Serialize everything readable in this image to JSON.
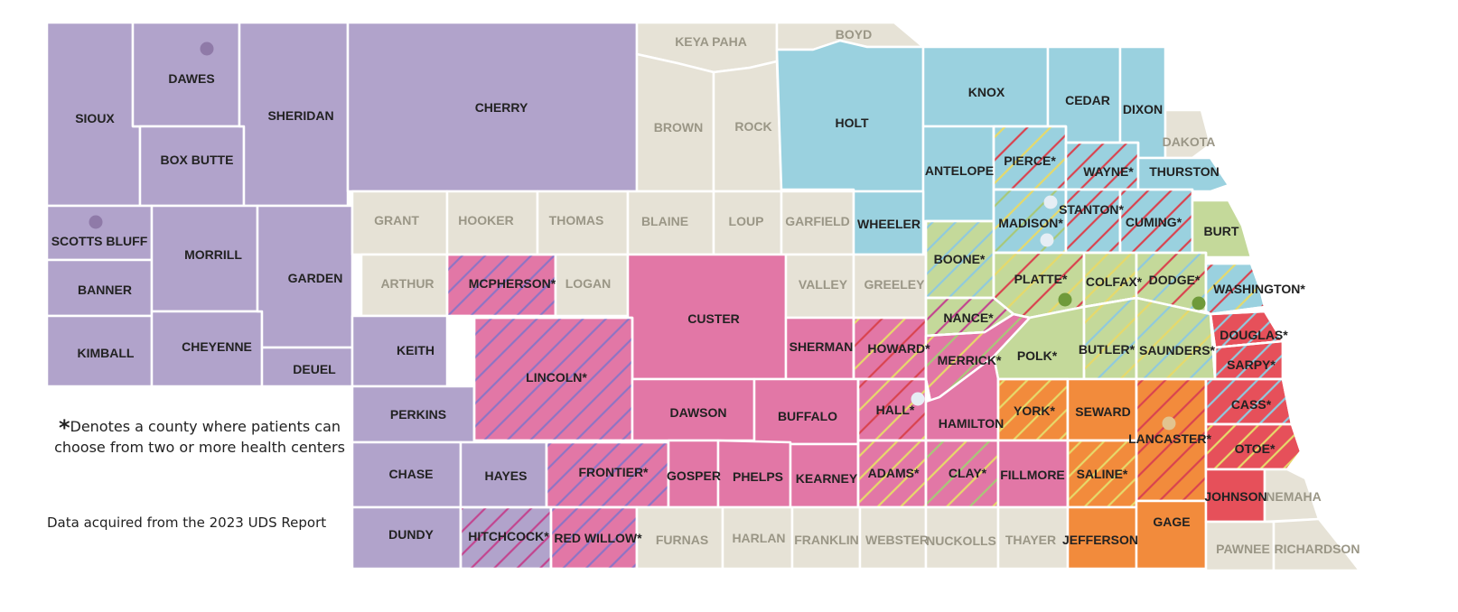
{
  "notes": {
    "asterisk_symbol": "*",
    "asterisk_text": "Denotes a county where patients can choose from two or more health centers",
    "source": "Data acquired from the 2023 UDS Report"
  },
  "colors": {
    "purple": "#b1a3cb",
    "beige": "#e6e2d6",
    "blue": "#9ad1df",
    "green": "#c4d99a",
    "pink": "#e277a6",
    "orange": "#f28b3c",
    "red": "#e6505a",
    "label_dark": "#222222",
    "label_muted": "#9a9686",
    "stripe_magenta": "#c2458f",
    "stripe_purple": "#8e74c4",
    "stripe_red": "#d9434f",
    "stripe_blue": "#8fc9dd",
    "stripe_green": "#a8c878",
    "stripe_yellow": "#e6d96a",
    "dot_purple": "#8f7aa8",
    "dot_white": "#e6eef5",
    "dot_green": "#6f9a3a",
    "dot_tan": "#e2c48f"
  },
  "counties": [
    {
      "name": "SIOUX",
      "fill": "purple"
    },
    {
      "name": "DAWES",
      "fill": "purple"
    },
    {
      "name": "BOX BUTTE",
      "fill": "purple"
    },
    {
      "name": "SHERIDAN",
      "fill": "purple"
    },
    {
      "name": "CHERRY",
      "fill": "purple"
    },
    {
      "name": "KEYA PAHA",
      "fill": "beige"
    },
    {
      "name": "BOYD",
      "fill": "beige"
    },
    {
      "name": "BROWN",
      "fill": "beige"
    },
    {
      "name": "ROCK",
      "fill": "beige"
    },
    {
      "name": "HOLT",
      "fill": "blue"
    },
    {
      "name": "KNOX",
      "fill": "blue"
    },
    {
      "name": "CEDAR",
      "fill": "blue"
    },
    {
      "name": "DIXON",
      "fill": "blue"
    },
    {
      "name": "DAKOTA",
      "fill": "beige"
    },
    {
      "name": "ANTELOPE",
      "fill": "blue"
    },
    {
      "name": "PIERCE*",
      "fill": "blue",
      "pattern": "stripe-red-yellow"
    },
    {
      "name": "WAYNE*",
      "fill": "blue",
      "pattern": "stripe-red"
    },
    {
      "name": "THURSTON",
      "fill": "blue"
    },
    {
      "name": "SCOTTS BLUFF",
      "fill": "purple"
    },
    {
      "name": "BANNER",
      "fill": "purple"
    },
    {
      "name": "KIMBALL",
      "fill": "purple"
    },
    {
      "name": "MORRILL",
      "fill": "purple"
    },
    {
      "name": "CHEYENNE",
      "fill": "purple"
    },
    {
      "name": "GARDEN",
      "fill": "purple"
    },
    {
      "name": "DEUEL",
      "fill": "purple"
    },
    {
      "name": "GRANT",
      "fill": "beige"
    },
    {
      "name": "HOOKER",
      "fill": "beige"
    },
    {
      "name": "THOMAS",
      "fill": "beige"
    },
    {
      "name": "BLAINE",
      "fill": "beige"
    },
    {
      "name": "LOUP",
      "fill": "beige"
    },
    {
      "name": "GARFIELD",
      "fill": "beige"
    },
    {
      "name": "WHEELER",
      "fill": "blue"
    },
    {
      "name": "MADISON*",
      "fill": "blue",
      "pattern": "stripe-green-yellow"
    },
    {
      "name": "STANTON*",
      "fill": "blue",
      "pattern": "stripe-red"
    },
    {
      "name": "CUMING*",
      "fill": "blue",
      "pattern": "stripe-red"
    },
    {
      "name": "BURT",
      "fill": "green"
    },
    {
      "name": "ARTHUR",
      "fill": "beige"
    },
    {
      "name": "MCPHERSON*",
      "fill": "pink",
      "pattern": "stripe-purple"
    },
    {
      "name": "LOGAN",
      "fill": "beige"
    },
    {
      "name": "CUSTER",
      "fill": "pink"
    },
    {
      "name": "VALLEY",
      "fill": "beige"
    },
    {
      "name": "GREELEY",
      "fill": "beige"
    },
    {
      "name": "BOONE*",
      "fill": "green",
      "pattern": "stripe-blue"
    },
    {
      "name": "PLATTE*",
      "fill": "green",
      "pattern": "stripe-red-yellow"
    },
    {
      "name": "COLFAX*",
      "fill": "green",
      "pattern": "stripe-yellow"
    },
    {
      "name": "DODGE*",
      "fill": "green",
      "pattern": "stripe-red-blue"
    },
    {
      "name": "WASHINGTON*",
      "fill": "blue",
      "pattern": "stripe-red-yellow"
    },
    {
      "name": "KEITH",
      "fill": "purple"
    },
    {
      "name": "PERKINS",
      "fill": "purple"
    },
    {
      "name": "LINCOLN*",
      "fill": "pink",
      "pattern": "stripe-purple"
    },
    {
      "name": "NANCE*",
      "fill": "green",
      "pattern": "stripe-magenta"
    },
    {
      "name": "SHERMAN",
      "fill": "pink"
    },
    {
      "name": "HOWARD*",
      "fill": "pink",
      "pattern": "stripe-red-yellow"
    },
    {
      "name": "MERRICK*",
      "fill": "pink",
      "pattern": "stripe-green-yellow"
    },
    {
      "name": "POLK*",
      "fill": "green"
    },
    {
      "name": "BUTLER*",
      "fill": "green",
      "pattern": "stripe-blue-yellow"
    },
    {
      "name": "SAUNDERS*",
      "fill": "green",
      "pattern": "stripe-blue-yellow"
    },
    {
      "name": "DOUGLAS*",
      "fill": "red",
      "pattern": "stripe-blue"
    },
    {
      "name": "SARPY*",
      "fill": "red",
      "pattern": "stripe-blue"
    },
    {
      "name": "DAWSON",
      "fill": "pink"
    },
    {
      "name": "BUFFALO",
      "fill": "pink"
    },
    {
      "name": "HALL*",
      "fill": "pink",
      "pattern": "stripe-red-yellow"
    },
    {
      "name": "HAMILTON",
      "fill": "pink"
    },
    {
      "name": "YORK*",
      "fill": "orange",
      "pattern": "stripe-yellow"
    },
    {
      "name": "SEWARD",
      "fill": "orange"
    },
    {
      "name": "LANCASTER*",
      "fill": "orange",
      "pattern": "stripe-red"
    },
    {
      "name": "CASS*",
      "fill": "red",
      "pattern": "stripe-blue"
    },
    {
      "name": "CHASE",
      "fill": "purple"
    },
    {
      "name": "HAYES",
      "fill": "purple"
    },
    {
      "name": "FRONTIER*",
      "fill": "pink",
      "pattern": "stripe-purple"
    },
    {
      "name": "GOSPER",
      "fill": "pink"
    },
    {
      "name": "PHELPS",
      "fill": "pink"
    },
    {
      "name": "KEARNEY",
      "fill": "pink"
    },
    {
      "name": "ADAMS*",
      "fill": "pink",
      "pattern": "stripe-yellow"
    },
    {
      "name": "CLAY*",
      "fill": "pink",
      "pattern": "stripe-green-yellow"
    },
    {
      "name": "FILLMORE",
      "fill": "pink"
    },
    {
      "name": "SALINE*",
      "fill": "orange",
      "pattern": "stripe-yellow"
    },
    {
      "name": "OTOE*",
      "fill": "red",
      "pattern": "stripe-yellow"
    },
    {
      "name": "DUNDY",
      "fill": "purple"
    },
    {
      "name": "HITCHCOCK*",
      "fill": "purple",
      "pattern": "stripe-magenta"
    },
    {
      "name": "RED WILLOW*",
      "fill": "pink",
      "pattern": "stripe-purple"
    },
    {
      "name": "FURNAS",
      "fill": "beige"
    },
    {
      "name": "HARLAN",
      "fill": "beige"
    },
    {
      "name": "FRANKLIN",
      "fill": "beige"
    },
    {
      "name": "WEBSTER",
      "fill": "beige"
    },
    {
      "name": "NUCKOLLS",
      "fill": "beige"
    },
    {
      "name": "THAYER",
      "fill": "beige"
    },
    {
      "name": "JEFFERSON",
      "fill": "orange"
    },
    {
      "name": "GAGE",
      "fill": "orange"
    },
    {
      "name": "JOHNSON",
      "fill": "red"
    },
    {
      "name": "NEMAHA",
      "fill": "beige"
    },
    {
      "name": "PAWNEE",
      "fill": "beige"
    },
    {
      "name": "RICHARDSON",
      "fill": "beige"
    }
  ],
  "markers": [
    {
      "name": "DAWES",
      "color": "dot_purple"
    },
    {
      "name": "SCOTTS BLUFF",
      "color": "dot_purple"
    },
    {
      "name": "MADISON*",
      "color": "dot_white"
    },
    {
      "name": "MADISON*",
      "color": "dot_white"
    },
    {
      "name": "HALL*",
      "color": "dot_white"
    },
    {
      "name": "PLATTE*",
      "color": "dot_green"
    },
    {
      "name": "DODGE*",
      "color": "dot_green"
    },
    {
      "name": "LANCASTER*",
      "color": "dot_tan"
    }
  ]
}
